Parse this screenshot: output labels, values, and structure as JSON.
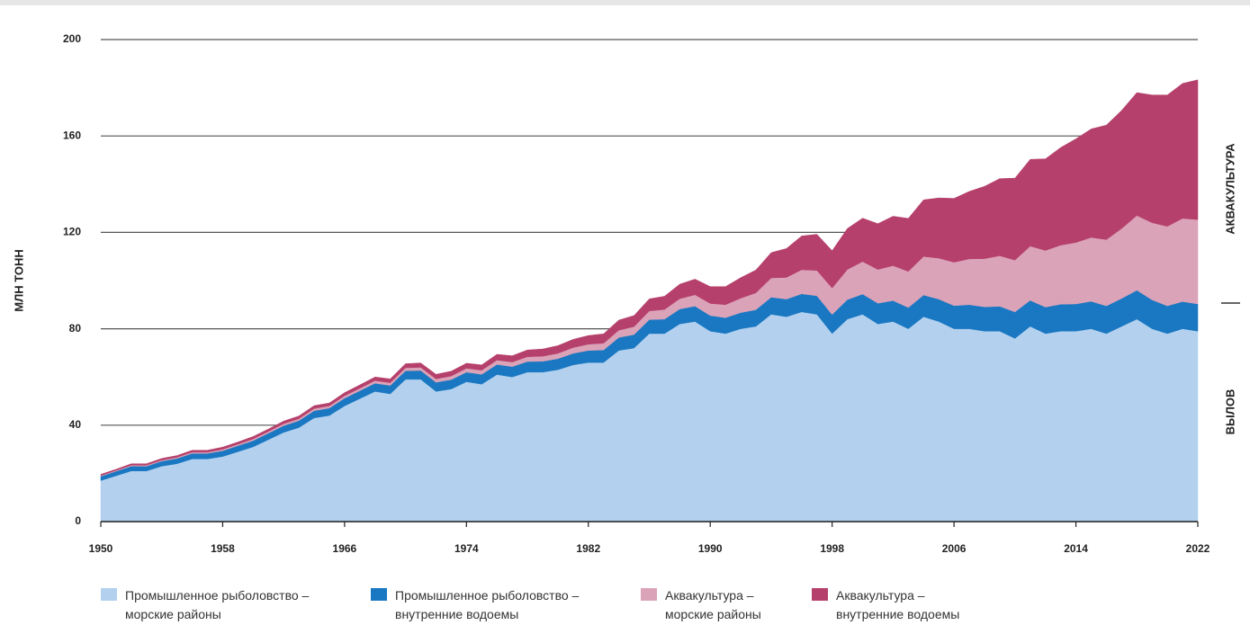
{
  "chart_data": {
    "type": "stacked-area",
    "y_label": "МЛН ТОНН",
    "right_labels": [
      "АКВАКУЛЬТУРА",
      "ВЫЛОВ"
    ],
    "xlim": [
      1950,
      2022
    ],
    "xticks": [
      1950,
      1958,
      1966,
      1974,
      1982,
      1990,
      1998,
      2006,
      2014,
      2022
    ],
    "ylim": [
      0,
      200
    ],
    "yticks": [
      0,
      40,
      80,
      120,
      160,
      200
    ],
    "grid": true,
    "x": [
      1950,
      1951,
      1952,
      1953,
      1954,
      1955,
      1956,
      1957,
      1958,
      1959,
      1960,
      1961,
      1962,
      1963,
      1964,
      1965,
      1966,
      1967,
      1968,
      1969,
      1970,
      1971,
      1972,
      1973,
      1974,
      1975,
      1976,
      1977,
      1978,
      1979,
      1980,
      1981,
      1982,
      1983,
      1984,
      1985,
      1986,
      1987,
      1988,
      1989,
      1990,
      1991,
      1992,
      1993,
      1994,
      1995,
      1996,
      1997,
      1998,
      1999,
      2000,
      2001,
      2002,
      2003,
      2004,
      2005,
      2006,
      2007,
      2008,
      2009,
      2010,
      2011,
      2012,
      2013,
      2014,
      2015,
      2016,
      2017,
      2018,
      2019,
      2020,
      2021,
      2022
    ],
    "series": [
      {
        "name": "Промышленное рыболовство –\nморские районы",
        "color": "#b3d1ee",
        "values": [
          17,
          19,
          21,
          21,
          23,
          24,
          26,
          26,
          27,
          29,
          31,
          34,
          37,
          39,
          43,
          44,
          48,
          51,
          54,
          53,
          59,
          59,
          54,
          55,
          58,
          57,
          61,
          60,
          62,
          62,
          63,
          65,
          66,
          66,
          71,
          72,
          78,
          78,
          82,
          83,
          79,
          78,
          80,
          81,
          86,
          85,
          87,
          86,
          78,
          84,
          86,
          82,
          83,
          80,
          85,
          83,
          80,
          80,
          79,
          79,
          76,
          81,
          78,
          79,
          79,
          80,
          78,
          81,
          84,
          80,
          78,
          80,
          79
        ]
      },
      {
        "name": "Промышленное рыболовство –\nвнутренние водоемы",
        "color": "#1a78c2",
        "values": [
          1.8,
          1.9,
          2.0,
          2.0,
          2.1,
          2.2,
          2.3,
          2.3,
          2.4,
          2.5,
          2.6,
          2.7,
          2.8,
          2.9,
          3.0,
          3.1,
          3.2,
          3.3,
          3.4,
          3.5,
          3.6,
          3.7,
          3.8,
          3.9,
          4.0,
          4.1,
          4.2,
          4.3,
          4.4,
          4.5,
          4.6,
          4.8,
          5.0,
          5.2,
          5.4,
          5.6,
          5.8,
          6.0,
          6.2,
          6.4,
          6.5,
          6.6,
          6.7,
          6.9,
          7.1,
          7.3,
          7.5,
          7.7,
          7.9,
          8.1,
          8.4,
          8.6,
          8.7,
          8.8,
          9.0,
          9.3,
          9.6,
          10.0,
          10.1,
          10.3,
          11.0,
          10.8,
          11.0,
          11.2,
          11.3,
          11.4,
          11.5,
          11.6,
          12.0,
          12.0,
          11.5,
          11.3,
          11.3
        ]
      },
      {
        "name": "Аквакультура –\nморские районы",
        "color": "#dba3b8",
        "values": [
          0.3,
          0.3,
          0.4,
          0.4,
          0.4,
          0.5,
          0.5,
          0.5,
          0.6,
          0.6,
          0.7,
          0.7,
          0.8,
          0.8,
          0.9,
          0.9,
          1.0,
          1.0,
          1.1,
          1.1,
          1.2,
          1.3,
          1.4,
          1.5,
          1.6,
          1.7,
          1.8,
          1.9,
          2.0,
          2.1,
          2.2,
          2.4,
          2.6,
          2.8,
          3.0,
          3.3,
          3.6,
          4.0,
          4.3,
          4.7,
          5.0,
          5.4,
          6.0,
          7.0,
          8.0,
          9.0,
          10.0,
          10.5,
          11.0,
          12.5,
          13.5,
          14.0,
          14.5,
          15.0,
          16.0,
          17.0,
          18.0,
          19.0,
          20.0,
          21.0,
          21.5,
          22.5,
          23.5,
          24.5,
          25.5,
          26.5,
          27.5,
          29.0,
          31.0,
          32.0,
          33.0,
          34.5,
          35.0
        ]
      },
      {
        "name": "Аквакультура –\nвнутренние водоемы",
        "color": "#b5406b",
        "values": [
          0.5,
          0.5,
          0.6,
          0.6,
          0.7,
          0.7,
          0.8,
          0.8,
          0.9,
          0.9,
          1.0,
          1.0,
          1.1,
          1.1,
          1.2,
          1.2,
          1.3,
          1.4,
          1.5,
          1.6,
          1.7,
          1.8,
          1.9,
          2.0,
          2.1,
          2.2,
          2.4,
          2.6,
          2.8,
          3.0,
          3.2,
          3.4,
          3.6,
          3.9,
          4.2,
          4.6,
          5.0,
          5.5,
          6.0,
          6.5,
          7.0,
          7.5,
          8.5,
          9.5,
          10.5,
          12.0,
          14.0,
          15.0,
          15.5,
          17.0,
          18.0,
          19.0,
          20.5,
          22.0,
          23.5,
          25.0,
          26.5,
          28.0,
          30.0,
          32.0,
          34.0,
          36.0,
          38.0,
          40.5,
          43.0,
          45.0,
          47.5,
          49.0,
          51.0,
          53.0,
          54.5,
          56.0,
          58.0
        ]
      }
    ]
  }
}
